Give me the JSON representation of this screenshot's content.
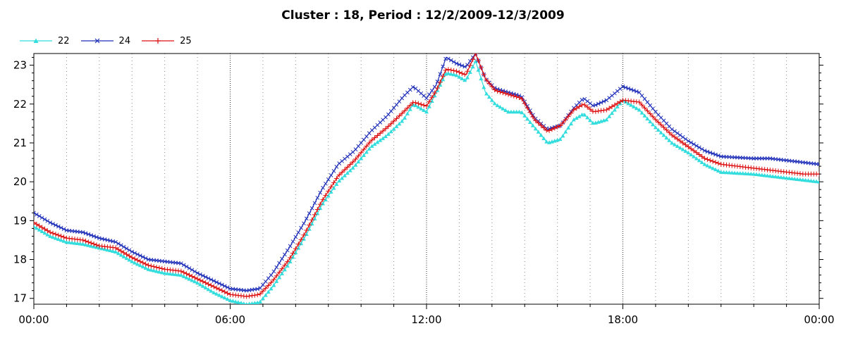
{
  "chart_data": {
    "type": "line",
    "title": "Cluster : 18, Period : 12/2/2009-12/3/2009",
    "xlabel": "",
    "ylabel": "",
    "x_tick_labels": [
      "00:00",
      "06:00",
      "12:00",
      "18:00",
      "00:00"
    ],
    "x_ticks_hours": [
      0,
      6,
      12,
      18,
      24
    ],
    "y_ticks": [
      17,
      18,
      19,
      20,
      21,
      22,
      23
    ],
    "xlim_hours": [
      0,
      24
    ],
    "ylim": [
      16.85,
      23.3
    ],
    "grid": true,
    "legend_position": "top-left",
    "series": [
      {
        "name": "22",
        "color": "#33dddd",
        "marker": "triangle",
        "points": [
          [
            0,
            18.85
          ],
          [
            0.5,
            18.6
          ],
          [
            1,
            18.45
          ],
          [
            1.5,
            18.4
          ],
          [
            2,
            18.3
          ],
          [
            2.5,
            18.2
          ],
          [
            3,
            17.95
          ],
          [
            3.5,
            17.75
          ],
          [
            4,
            17.65
          ],
          [
            4.5,
            17.6
          ],
          [
            5,
            17.4
          ],
          [
            5.5,
            17.15
          ],
          [
            6,
            16.95
          ],
          [
            6.5,
            16.85
          ],
          [
            6.9,
            16.9
          ],
          [
            7.3,
            17.3
          ],
          [
            7.8,
            17.9
          ],
          [
            8.3,
            18.6
          ],
          [
            8.8,
            19.4
          ],
          [
            9.3,
            20.0
          ],
          [
            9.8,
            20.4
          ],
          [
            10.3,
            20.9
          ],
          [
            10.8,
            21.2
          ],
          [
            11.3,
            21.6
          ],
          [
            11.6,
            22.0
          ],
          [
            12,
            21.8
          ],
          [
            12.3,
            22.3
          ],
          [
            12.6,
            22.8
          ],
          [
            12.9,
            22.75
          ],
          [
            13.2,
            22.6
          ],
          [
            13.5,
            23.1
          ],
          [
            13.8,
            22.3
          ],
          [
            14.1,
            22.0
          ],
          [
            14.5,
            21.8
          ],
          [
            14.9,
            21.8
          ],
          [
            15.3,
            21.4
          ],
          [
            15.7,
            21.0
          ],
          [
            16.1,
            21.1
          ],
          [
            16.5,
            21.6
          ],
          [
            16.8,
            21.75
          ],
          [
            17.1,
            21.5
          ],
          [
            17.5,
            21.6
          ],
          [
            18,
            22.1
          ],
          [
            18.5,
            21.85
          ],
          [
            19,
            21.4
          ],
          [
            19.5,
            21.0
          ],
          [
            20,
            20.75
          ],
          [
            20.5,
            20.45
          ],
          [
            21,
            20.25
          ],
          [
            22,
            20.2
          ],
          [
            22.5,
            20.15
          ],
          [
            23,
            20.1
          ],
          [
            23.5,
            20.05
          ],
          [
            24,
            20.0
          ]
        ]
      },
      {
        "name": "24",
        "color": "#1f2fb8",
        "marker": "x",
        "points": [
          [
            0,
            19.2
          ],
          [
            0.5,
            18.95
          ],
          [
            1,
            18.75
          ],
          [
            1.5,
            18.7
          ],
          [
            2,
            18.55
          ],
          [
            2.5,
            18.45
          ],
          [
            3,
            18.2
          ],
          [
            3.5,
            18.0
          ],
          [
            4,
            17.95
          ],
          [
            4.5,
            17.9
          ],
          [
            5,
            17.65
          ],
          [
            5.5,
            17.45
          ],
          [
            6,
            17.25
          ],
          [
            6.5,
            17.2
          ],
          [
            6.9,
            17.25
          ],
          [
            7.3,
            17.65
          ],
          [
            7.8,
            18.3
          ],
          [
            8.3,
            19.0
          ],
          [
            8.8,
            19.8
          ],
          [
            9.3,
            20.45
          ],
          [
            9.8,
            20.8
          ],
          [
            10.3,
            21.3
          ],
          [
            10.8,
            21.7
          ],
          [
            11.3,
            22.2
          ],
          [
            11.6,
            22.45
          ],
          [
            12,
            22.15
          ],
          [
            12.3,
            22.5
          ],
          [
            12.6,
            23.2
          ],
          [
            12.9,
            23.05
          ],
          [
            13.2,
            22.95
          ],
          [
            13.5,
            23.3
          ],
          [
            13.8,
            22.65
          ],
          [
            14.1,
            22.4
          ],
          [
            14.5,
            22.3
          ],
          [
            14.9,
            22.2
          ],
          [
            15.3,
            21.65
          ],
          [
            15.7,
            21.35
          ],
          [
            16.1,
            21.45
          ],
          [
            16.5,
            21.9
          ],
          [
            16.8,
            22.15
          ],
          [
            17.1,
            21.95
          ],
          [
            17.5,
            22.1
          ],
          [
            18,
            22.45
          ],
          [
            18.5,
            22.3
          ],
          [
            19,
            21.8
          ],
          [
            19.5,
            21.35
          ],
          [
            20,
            21.05
          ],
          [
            20.5,
            20.8
          ],
          [
            21,
            20.65
          ],
          [
            22,
            20.6
          ],
          [
            22.5,
            20.6
          ],
          [
            23,
            20.55
          ],
          [
            23.5,
            20.5
          ],
          [
            24,
            20.45
          ]
        ]
      },
      {
        "name": "25",
        "color": "#dd1111",
        "marker": "plus",
        "points": [
          [
            0,
            18.95
          ],
          [
            0.5,
            18.7
          ],
          [
            1,
            18.55
          ],
          [
            1.5,
            18.5
          ],
          [
            2,
            18.35
          ],
          [
            2.5,
            18.3
          ],
          [
            3,
            18.05
          ],
          [
            3.5,
            17.85
          ],
          [
            4,
            17.75
          ],
          [
            4.5,
            17.7
          ],
          [
            5,
            17.5
          ],
          [
            5.5,
            17.3
          ],
          [
            6,
            17.1
          ],
          [
            6.5,
            17.05
          ],
          [
            6.9,
            17.1
          ],
          [
            7.3,
            17.45
          ],
          [
            7.8,
            18.0
          ],
          [
            8.3,
            18.7
          ],
          [
            8.8,
            19.5
          ],
          [
            9.3,
            20.15
          ],
          [
            9.8,
            20.55
          ],
          [
            10.3,
            21.05
          ],
          [
            10.8,
            21.4
          ],
          [
            11.3,
            21.8
          ],
          [
            11.6,
            22.05
          ],
          [
            12,
            21.95
          ],
          [
            12.3,
            22.35
          ],
          [
            12.6,
            22.9
          ],
          [
            12.9,
            22.85
          ],
          [
            13.2,
            22.75
          ],
          [
            13.5,
            23.3
          ],
          [
            13.8,
            22.65
          ],
          [
            14.1,
            22.35
          ],
          [
            14.5,
            22.25
          ],
          [
            14.9,
            22.15
          ],
          [
            15.3,
            21.6
          ],
          [
            15.7,
            21.3
          ],
          [
            16.1,
            21.45
          ],
          [
            16.5,
            21.85
          ],
          [
            16.8,
            22.0
          ],
          [
            17.1,
            21.8
          ],
          [
            17.5,
            21.85
          ],
          [
            18,
            22.1
          ],
          [
            18.5,
            22.05
          ],
          [
            19,
            21.6
          ],
          [
            19.5,
            21.2
          ],
          [
            20,
            20.9
          ],
          [
            20.5,
            20.6
          ],
          [
            21,
            20.45
          ],
          [
            22,
            20.35
          ],
          [
            22.5,
            20.3
          ],
          [
            23,
            20.25
          ],
          [
            23.5,
            20.2
          ],
          [
            24,
            20.2
          ]
        ]
      }
    ]
  }
}
